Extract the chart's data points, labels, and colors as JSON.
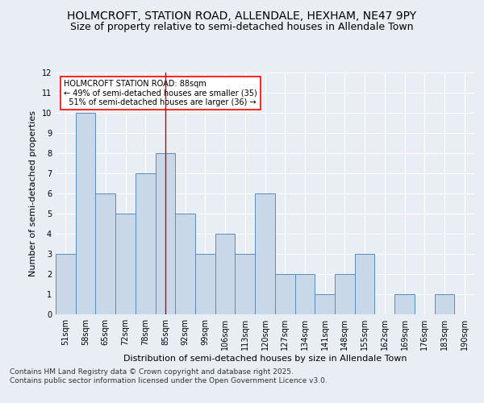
{
  "title1": "HOLMCROFT, STATION ROAD, ALLENDALE, HEXHAM, NE47 9PY",
  "title2": "Size of property relative to semi-detached houses in Allendale Town",
  "xlabel": "Distribution of semi-detached houses by size in Allendale Town",
  "ylabel": "Number of semi-detached properties",
  "footer": "Contains HM Land Registry data © Crown copyright and database right 2025.\nContains public sector information licensed under the Open Government Licence v3.0.",
  "categories": [
    "51sqm",
    "58sqm",
    "65sqm",
    "72sqm",
    "78sqm",
    "85sqm",
    "92sqm",
    "99sqm",
    "106sqm",
    "113sqm",
    "120sqm",
    "127sqm",
    "134sqm",
    "141sqm",
    "148sqm",
    "155sqm",
    "162sqm",
    "169sqm",
    "176sqm",
    "183sqm",
    "190sqm"
  ],
  "values": [
    3,
    10,
    6,
    5,
    7,
    8,
    5,
    3,
    4,
    3,
    6,
    2,
    2,
    1,
    2,
    3,
    0,
    1,
    0,
    1,
    0
  ],
  "bar_color": "#c8d8e8",
  "bar_edge_color": "#5b8db8",
  "highlight_index": 5,
  "highlight_color": "#cc0000",
  "highlight_label": "HOLMCROFT STATION ROAD: 88sqm",
  "pct_smaller": 49,
  "n_smaller": 35,
  "pct_larger": 51,
  "n_larger": 36,
  "ylim": [
    0,
    12
  ],
  "yticks": [
    0,
    1,
    2,
    3,
    4,
    5,
    6,
    7,
    8,
    9,
    10,
    11,
    12
  ],
  "bg_color": "#e8eef4",
  "plot_bg_color": "#e8eef4",
  "grid_color": "#ffffff",
  "title_fontsize": 10,
  "subtitle_fontsize": 9,
  "axis_label_fontsize": 8,
  "tick_fontsize": 7,
  "footer_fontsize": 6.5
}
